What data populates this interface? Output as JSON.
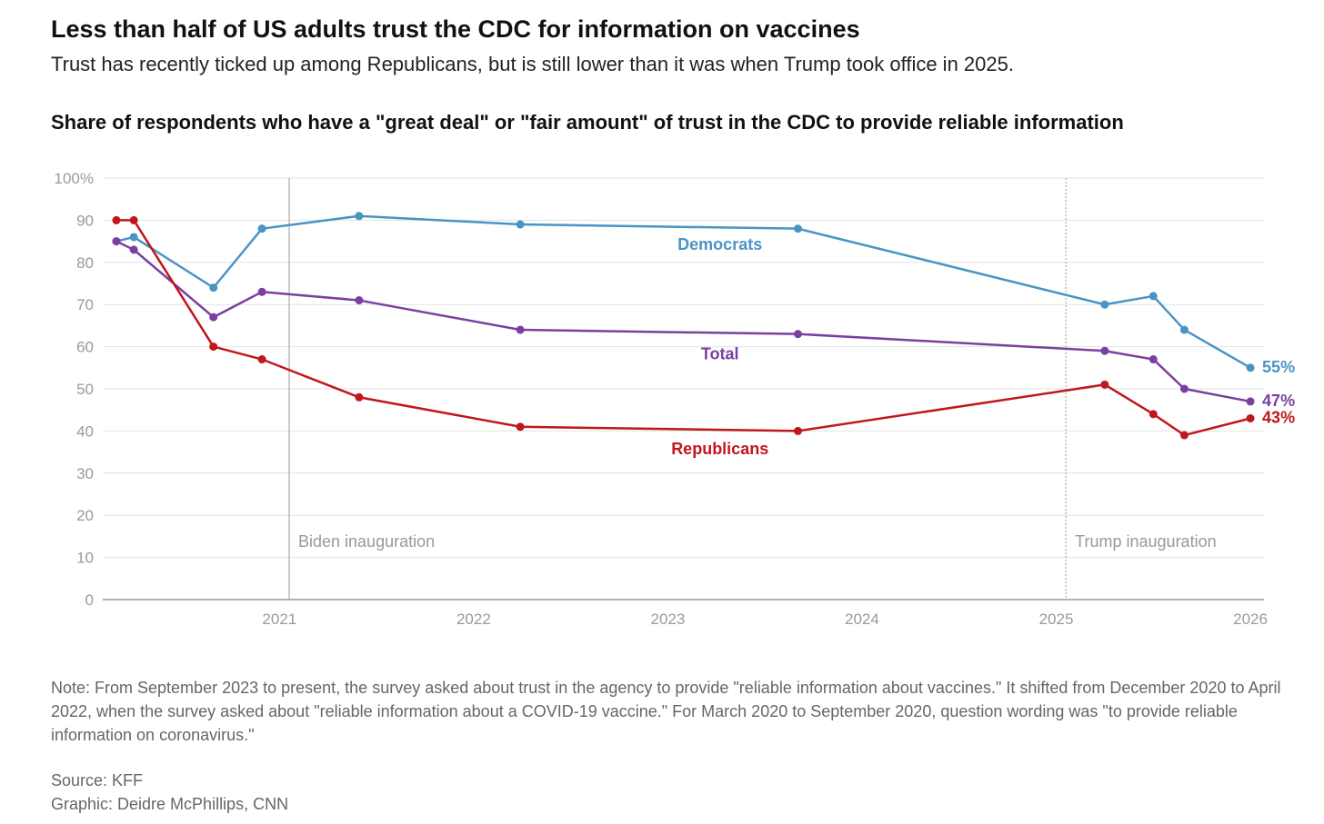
{
  "header": {
    "title": "Less than half of US adults trust the CDC for information on vaccines",
    "subtitle": "Trust has recently ticked up among Republicans, but is still lower than it was when Trump took office in 2025.",
    "chart_title": "Share of respondents who have a \"great deal\" or \"fair amount\" of trust in the CDC to provide reliable information"
  },
  "chart_data": {
    "type": "line",
    "title": "Share of respondents who have a \"great deal\" or \"fair amount\" of trust in the CDC to provide reliable information",
    "xlabel": "",
    "ylabel": "",
    "xlim": [
      2020.09,
      2026.07
    ],
    "ylim": [
      0,
      100
    ],
    "x_ticks": [
      2021,
      2022,
      2023,
      2024,
      2025,
      2026
    ],
    "x_tick_labels": [
      "2021",
      "2022",
      "2023",
      "2024",
      "2025",
      "2026"
    ],
    "y_ticks": [
      0,
      10,
      20,
      30,
      40,
      50,
      60,
      70,
      80,
      90,
      100
    ],
    "y_tick_labels": [
      "0",
      "10",
      "20",
      "30",
      "40",
      "50",
      "60",
      "70",
      "80",
      "90",
      "100%"
    ],
    "grid": true,
    "x": [
      2020.16,
      2020.25,
      2020.66,
      2020.91,
      2021.41,
      2022.24,
      2023.67,
      2025.25,
      2025.5,
      2025.66,
      2026.0
    ],
    "series": [
      {
        "name": "Democrats",
        "color": "#4a94c4",
        "values": [
          85,
          86,
          74,
          88,
          91,
          89,
          88,
          70,
          72,
          64,
          55
        ],
        "end_label": "55%",
        "label_at": [
          2022.8,
          83
        ]
      },
      {
        "name": "Total",
        "color": "#7b3fa0",
        "values": [
          85,
          83,
          67,
          73,
          71,
          64,
          63,
          59,
          57,
          50,
          47
        ],
        "end_label": "47%",
        "label_at": [
          2022.8,
          57
        ]
      },
      {
        "name": "Republicans",
        "color": "#c0171c",
        "values": [
          90,
          90,
          60,
          57,
          48,
          41,
          40,
          51,
          44,
          39,
          43
        ],
        "end_label": "43%",
        "label_at": [
          2022.8,
          34.5
        ]
      }
    ],
    "annotations": [
      {
        "text": "Biden inauguration",
        "x": 2021.05
      },
      {
        "text": "Trump inauguration",
        "x": 2025.05
      }
    ]
  },
  "footer": {
    "note": "Note: From September 2023 to present, the survey asked about trust in the agency to provide \"reliable information about vaccines.\" It shifted from December 2020 to April 2022, when the survey asked about \"reliable information about a COVID-19 vaccine.\" For March 2020 to September 2020, question wording was \"to provide reliable information on coronavirus.\"",
    "source": "Source: KFF",
    "credit": "Graphic: Deidre McPhillips, CNN"
  }
}
